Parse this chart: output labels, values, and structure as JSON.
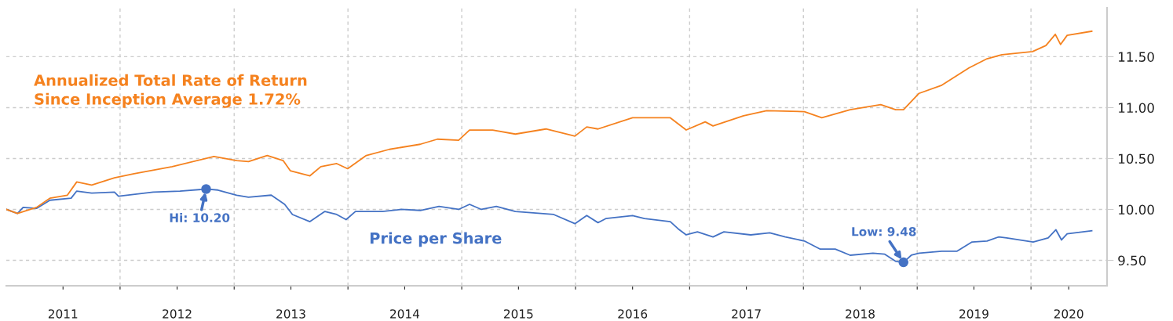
{
  "chart_data": {
    "type": "line",
    "series": [
      {
        "name": "Annualized Total Rate of Return\nSince Inception Average 1.72%",
        "color": "#f5821f",
        "x": [
          "2011-01-01",
          "2011-02-06",
          "2011-04-08",
          "2011-05-21",
          "2011-07-16",
          "2011-08-15",
          "2011-10-02",
          "2011-12-14",
          "2012-02-15",
          "2012-06-16",
          "2012-10-28",
          "2013-01-09",
          "2013-02-16",
          "2013-04-17",
          "2013-06-07",
          "2013-06-30",
          "2013-09-01",
          "2013-10-06",
          "2013-11-26",
          "2013-12-31",
          "2014-03-01",
          "2014-05-14",
          "2014-08-21",
          "2014-10-15",
          "2014-12-22",
          "2015-01-26",
          "2015-04-10",
          "2015-06-22",
          "2015-09-28",
          "2015-12-30",
          "2016-02-06",
          "2016-03-13",
          "2016-07-02",
          "2016-10-31",
          "2016-12-21",
          "2017-02-20",
          "2017-03-17",
          "2017-06-23",
          "2017-09-05",
          "2018-01-04",
          "2018-03-01",
          "2018-05-31",
          "2018-09-06",
          "2018-10-24",
          "2018-11-18",
          "2019-01-07",
          "2019-03-21",
          "2019-06-16",
          "2019-08-13",
          "2019-09-30",
          "2020-01-06",
          "2020-02-18",
          "2020-03-19",
          "2020-04-05",
          "2020-04-26",
          "2020-07-14"
        ],
        "values": [
          10.0,
          9.96,
          10.02,
          10.11,
          10.14,
          10.27,
          10.24,
          10.31,
          10.35,
          10.42,
          10.52,
          10.48,
          10.47,
          10.53,
          10.48,
          10.38,
          10.33,
          10.42,
          10.45,
          10.4,
          10.53,
          10.59,
          10.64,
          10.69,
          10.68,
          10.78,
          10.78,
          10.74,
          10.79,
          10.72,
          10.81,
          10.79,
          10.9,
          10.9,
          10.78,
          10.86,
          10.82,
          10.92,
          10.97,
          10.96,
          10.9,
          10.98,
          11.03,
          10.98,
          10.98,
          11.14,
          11.22,
          11.39,
          11.48,
          11.52,
          11.55,
          11.61,
          11.72,
          11.62,
          11.71,
          11.75
        ]
      },
      {
        "name": "Price per Share",
        "color": "#4472c4",
        "x": [
          "2011-01-01",
          "2011-02-06",
          "2011-02-24",
          "2011-04-08",
          "2011-05-21",
          "2011-07-28",
          "2011-08-15",
          "2011-10-02",
          "2011-12-14",
          "2011-12-27",
          "2012-04-16",
          "2012-07-11",
          "2012-10-03",
          "2012-11-10",
          "2013-01-09",
          "2013-02-16",
          "2013-04-30",
          "2013-06-12",
          "2013-07-07",
          "2013-09-01",
          "2013-10-19",
          "2013-11-26",
          "2013-12-26",
          "2014-01-25",
          "2014-04-21",
          "2014-06-21",
          "2014-08-21",
          "2014-10-20",
          "2014-12-22",
          "2015-01-26",
          "2015-03-05",
          "2015-04-22",
          "2015-06-22",
          "2015-10-23",
          "2015-12-30",
          "2016-02-06",
          "2016-03-13",
          "2016-04-07",
          "2016-07-02",
          "2016-08-09",
          "2016-10-31",
          "2016-11-25",
          "2016-12-21",
          "2017-01-26",
          "2017-03-17",
          "2017-04-21",
          "2017-07-16",
          "2017-09-15",
          "2017-11-04",
          "2018-01-04",
          "2018-02-24",
          "2018-04-13",
          "2018-05-31",
          "2018-08-12",
          "2018-09-19",
          "2018-10-24",
          "2018-11-18",
          "2018-12-13",
          "2019-01-07",
          "2019-03-21",
          "2019-05-09",
          "2019-06-26",
          "2019-08-13",
          "2019-09-20",
          "2019-10-15",
          "2020-01-08",
          "2020-02-25",
          "2020-03-21",
          "2020-04-08",
          "2020-04-26",
          "2020-07-14"
        ],
        "values": [
          10.0,
          9.96,
          10.02,
          10.01,
          10.09,
          10.11,
          10.18,
          10.16,
          10.17,
          10.13,
          10.17,
          10.18,
          10.2,
          10.19,
          10.14,
          10.12,
          10.14,
          10.05,
          9.95,
          9.88,
          9.98,
          9.95,
          9.9,
          9.98,
          9.98,
          10.0,
          9.99,
          10.03,
          10.0,
          10.05,
          10.0,
          10.03,
          9.98,
          9.95,
          9.86,
          9.94,
          9.87,
          9.91,
          9.94,
          9.91,
          9.88,
          9.81,
          9.75,
          9.78,
          9.73,
          9.78,
          9.75,
          9.77,
          9.73,
          9.69,
          9.61,
          9.61,
          9.55,
          9.57,
          9.56,
          9.49,
          9.48,
          9.55,
          9.57,
          9.59,
          9.59,
          9.68,
          9.69,
          9.73,
          9.72,
          9.68,
          9.72,
          9.8,
          9.7,
          9.76,
          9.79
        ]
      }
    ],
    "annotations": [
      {
        "text": "Hi: 10.20",
        "x": "2012-10-03",
        "y": 10.2
      },
      {
        "text": "Low: 9.48",
        "x": "2018-11-18",
        "y": 9.48
      }
    ],
    "xlim": [
      "2011-01-01",
      "2020-09-01"
    ],
    "xticks": [
      {
        "value": "2012-01-01",
        "label": null
      },
      {
        "value": "2013-01-01",
        "label": null
      },
      {
        "value": "2014-01-01",
        "label": null
      },
      {
        "value": "2015-01-01",
        "label": null
      },
      {
        "value": "2016-01-01",
        "label": null
      },
      {
        "value": "2017-01-01",
        "label": null
      },
      {
        "value": "2018-01-01",
        "label": null
      },
      {
        "value": "2019-01-01",
        "label": null
      },
      {
        "value": "2020-01-01",
        "label": null
      },
      {
        "value": "2011-07-02",
        "label": "2011"
      },
      {
        "value": "2012-07-02",
        "label": "2012"
      },
      {
        "value": "2013-07-02",
        "label": "2013"
      },
      {
        "value": "2014-07-02",
        "label": "2014"
      },
      {
        "value": "2015-07-02",
        "label": "2015"
      },
      {
        "value": "2016-07-02",
        "label": "2016"
      },
      {
        "value": "2017-07-02",
        "label": "2017"
      },
      {
        "value": "2018-07-02",
        "label": "2018"
      },
      {
        "value": "2019-07-02",
        "label": "2019"
      },
      {
        "value": "2020-05-01",
        "label": "2020"
      }
    ],
    "ylim": [
      9.25,
      11.98
    ],
    "yticks": [
      {
        "value": 9.5,
        "label": "9.50"
      },
      {
        "value": 10,
        "label": "10.00"
      },
      {
        "value": 10.5,
        "label": "10.50"
      },
      {
        "value": 11,
        "label": "11.00"
      },
      {
        "value": 11.5,
        "label": "11.50"
      }
    ],
    "grid": true,
    "line_style": "solid",
    "marker": "none",
    "legend": false
  }
}
